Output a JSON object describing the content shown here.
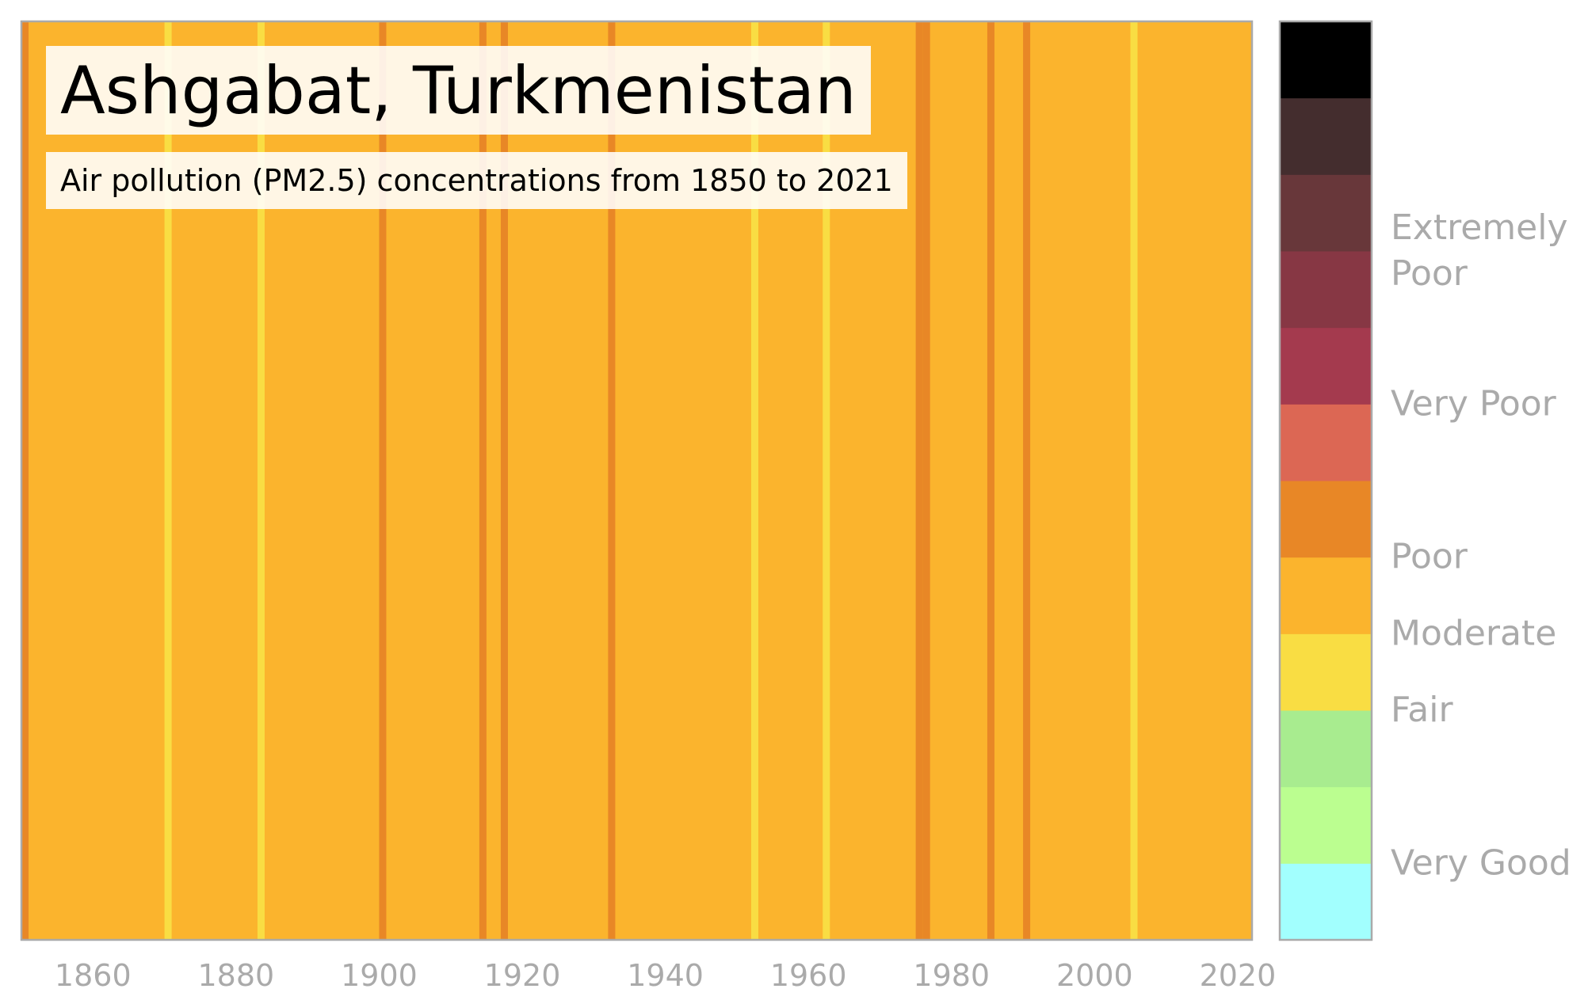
{
  "title": "Ashgabat, Turkmenistan",
  "subtitle": "Air pollution (PM2.5) concentrations from 1850 to 2021",
  "chart_data": {
    "type": "heatmap",
    "title": "Ashgabat, Turkmenistan",
    "subtitle": "Air pollution (PM2.5) concentrations from 1850 to 2021",
    "x_start": 1850,
    "x_end": 2021,
    "xlim": [
      1850,
      2022
    ],
    "x_ticks": [
      1860,
      1880,
      1900,
      1920,
      1940,
      1960,
      1980,
      2000,
      2020
    ],
    "grid": false,
    "legend_position": "right",
    "base_category": "Moderate",
    "stripes": [
      {
        "year": 1850,
        "category": "Poor"
      },
      {
        "year": 1870,
        "category": "Fair"
      },
      {
        "year": 1883,
        "category": "Fair"
      },
      {
        "year": 1900,
        "category": "Poor"
      },
      {
        "year": 1914,
        "category": "Poor"
      },
      {
        "year": 1917,
        "category": "Poor"
      },
      {
        "year": 1932,
        "category": "Poor"
      },
      {
        "year": 1952,
        "category": "Fair"
      },
      {
        "year": 1962,
        "category": "Fair"
      },
      {
        "year": 1975,
        "category": "Poor"
      },
      {
        "year": 1976,
        "category": "Poor"
      },
      {
        "year": 1985,
        "category": "Poor"
      },
      {
        "year": 1990,
        "category": "Poor"
      },
      {
        "year": 2005,
        "category": "Fair"
      }
    ],
    "colors": {
      "Moderate": "#fbb42d",
      "Poor": "#e88726",
      "Fair": "#f9dd43"
    },
    "colorbar": {
      "bands": [
        "#a2fffe",
        "#bbfe90",
        "#a8ec8f",
        "#f9dd43",
        "#fbb42d",
        "#e88726",
        "#dc6754",
        "#a43a4e",
        "#873744",
        "#68373a",
        "#442d2e",
        "#000000"
      ],
      "labels": [
        {
          "text": "Very Good",
          "level": 1
        },
        {
          "text": "Fair",
          "level": 3
        },
        {
          "text": "Moderate",
          "level": 4
        },
        {
          "text": "Poor",
          "level": 5
        },
        {
          "text": "Very Poor",
          "level": 7
        },
        {
          "text": "Extremely",
          "level": 9,
          "line2": "Poor"
        }
      ]
    }
  }
}
